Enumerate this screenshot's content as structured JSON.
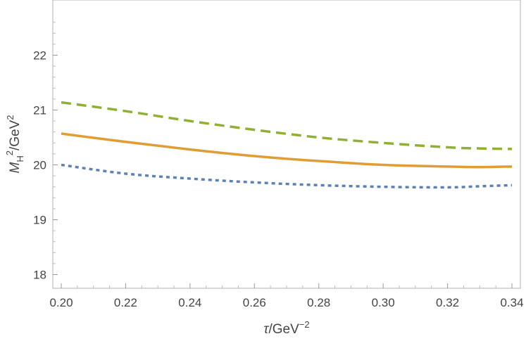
{
  "chart_data": {
    "type": "line",
    "xlabel": {
      "prefix": "τ",
      "unit": "/GeV",
      "exponent": "−2"
    },
    "ylabel": {
      "prefix": "M",
      "sub": "H",
      "sup": "2",
      "unit": "/GeV",
      "unit_sup": "2"
    },
    "xlim": [
      0.2,
      0.34
    ],
    "ylim": [
      17.75,
      22.75
    ],
    "x_ticks": [
      "0.20",
      "0.22",
      "0.24",
      "0.26",
      "0.28",
      "0.30",
      "0.32",
      "0.34"
    ],
    "y_ticks": [
      "18",
      "19",
      "20",
      "21",
      "22"
    ],
    "grid": false,
    "x": [
      0.2,
      0.22,
      0.24,
      0.26,
      0.28,
      0.3,
      0.32,
      0.33,
      0.34
    ],
    "series": [
      {
        "style": "dashed",
        "color": "#8FB032",
        "values": [
          21.14,
          20.98,
          20.8,
          20.64,
          20.5,
          20.4,
          20.32,
          20.3,
          20.29
        ]
      },
      {
        "style": "solid",
        "color": "#E09D33",
        "values": [
          20.57,
          20.42,
          20.28,
          20.16,
          20.07,
          20.0,
          19.97,
          19.96,
          19.97
        ]
      },
      {
        "style": "dotted",
        "color": "#5E81B5",
        "values": [
          20.0,
          19.84,
          19.75,
          19.68,
          19.63,
          19.6,
          19.59,
          19.61,
          19.63
        ]
      }
    ]
  }
}
